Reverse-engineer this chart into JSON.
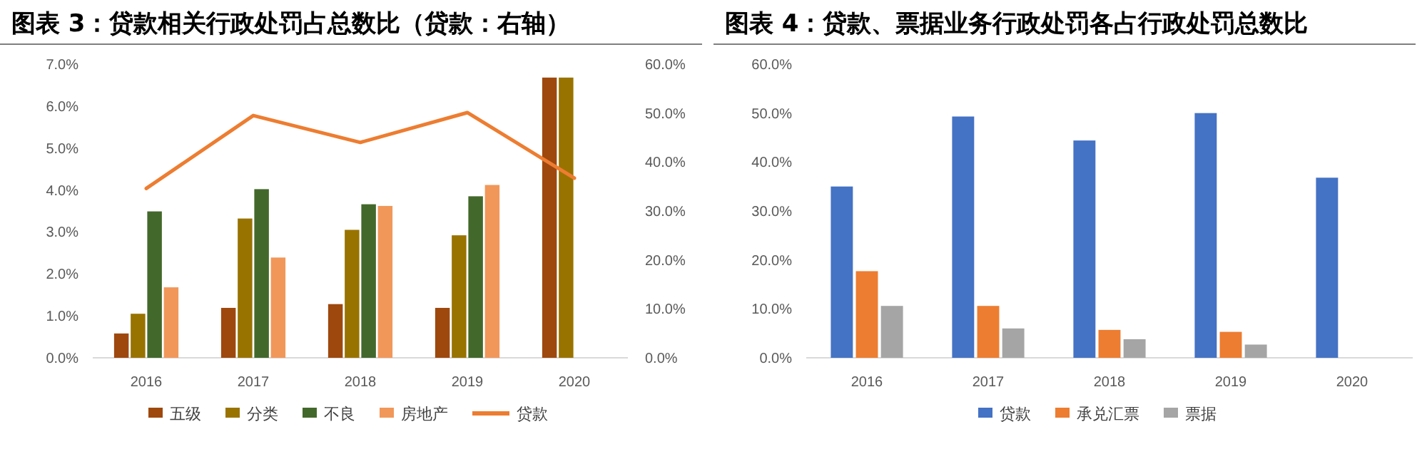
{
  "chart_data": [
    {
      "type": "bar",
      "title": "图表 3：贷款相关行政处罚占总数比（贷款：右轴）",
      "categories": [
        "2016",
        "2017",
        "2018",
        "2019",
        "2020"
      ],
      "series": [
        {
          "name": "五级",
          "color": "#9e480e",
          "values": [
            0.58,
            1.19,
            1.28,
            1.19,
            6.68
          ]
        },
        {
          "name": "分类",
          "color": "#997300",
          "values": [
            1.05,
            3.32,
            3.05,
            2.92,
            6.68
          ]
        },
        {
          "name": "不良",
          "color": "#43682b",
          "values": [
            3.49,
            4.02,
            3.66,
            3.85,
            null
          ]
        },
        {
          "name": "房地产",
          "color": "#f1975a",
          "values": [
            1.68,
            2.39,
            3.62,
            4.12,
            null
          ]
        },
        {
          "name": "贷款",
          "type": "line",
          "axis": "y2",
          "color": "#ed7d31",
          "values": [
            34.6,
            49.5,
            44.0,
            50.1,
            36.7
          ]
        }
      ],
      "ylim": [
        0,
        7
      ],
      "yticks": [
        {
          "value": 0,
          "label": "0.0%"
        },
        {
          "value": 1,
          "label": "1.0%"
        },
        {
          "value": 2,
          "label": "2.0%"
        },
        {
          "value": 3,
          "label": "3.0%"
        },
        {
          "value": 4,
          "label": "4.0%"
        },
        {
          "value": 5,
          "label": "5.0%"
        },
        {
          "value": 6,
          "label": "6.0%"
        },
        {
          "value": 7,
          "label": "7.0%"
        }
      ],
      "y2lim": [
        0,
        60
      ],
      "y2ticks": [
        {
          "value": 0,
          "label": "0.0%"
        },
        {
          "value": 10,
          "label": "10.0%"
        },
        {
          "value": 20,
          "label": "20.0%"
        },
        {
          "value": 30,
          "label": "30.0%"
        },
        {
          "value": 40,
          "label": "40.0%"
        },
        {
          "value": 50,
          "label": "50.0%"
        },
        {
          "value": 60,
          "label": "60.0%"
        }
      ],
      "grid": false,
      "legend": "bottom"
    },
    {
      "type": "bar",
      "title": "图表 4：贷款、票据业务行政处罚各占行政处罚总数比",
      "categories": [
        "2016",
        "2017",
        "2018",
        "2019",
        "2020"
      ],
      "series": [
        {
          "name": "贷款",
          "color": "#4472c4",
          "values": [
            35.0,
            49.3,
            44.4,
            50.0,
            36.8
          ]
        },
        {
          "name": "承兑汇票",
          "color": "#ed7d31",
          "values": [
            17.7,
            10.6,
            5.7,
            5.3,
            null
          ]
        },
        {
          "name": "票据",
          "color": "#a5a5a5",
          "values": [
            10.6,
            6.0,
            3.8,
            2.7,
            null
          ]
        }
      ],
      "ylim": [
        0,
        60
      ],
      "yticks": [
        {
          "value": 0,
          "label": "0.0%"
        },
        {
          "value": 10,
          "label": "10.0%"
        },
        {
          "value": 20,
          "label": "20.0%"
        },
        {
          "value": 30,
          "label": "30.0%"
        },
        {
          "value": 40,
          "label": "40.0%"
        },
        {
          "value": 50,
          "label": "50.0%"
        },
        {
          "value": 60,
          "label": "60.0%"
        }
      ],
      "grid": false,
      "legend": "bottom"
    }
  ]
}
